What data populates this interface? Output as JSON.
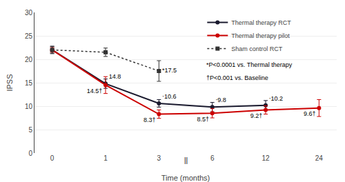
{
  "chart_data": {
    "type": "line",
    "x_label": "Time (months)",
    "y_label": "IPSS",
    "categories": [
      "0",
      "1",
      "3",
      "6",
      "12",
      "24"
    ],
    "ylim": [
      0,
      30
    ],
    "yticks": [
      0,
      5,
      10,
      15,
      20,
      25,
      30
    ],
    "grid": true,
    "legend": "upper right",
    "series": [
      {
        "name": "Thermal therapy RCT",
        "color": "#1a1a2e",
        "marker": "circle",
        "line_style": "solid",
        "values": [
          22.0,
          14.8,
          10.6,
          9.8,
          10.2,
          null
        ],
        "yerr": [
          0.8,
          1.0,
          0.8,
          1.0,
          1.0,
          null
        ],
        "value_labels": [
          null,
          "14.8",
          "‧10.6",
          "‧9.8",
          "‧10.2",
          null
        ]
      },
      {
        "name": "Thermal therapy pilot",
        "color": "#cc0000",
        "marker": "circle",
        "line_style": "solid",
        "values": [
          22.0,
          14.5,
          8.3,
          8.5,
          9.2,
          9.6
        ],
        "yerr": [
          0.5,
          1.8,
          0.9,
          1.0,
          0.9,
          1.8
        ],
        "value_labels": [
          null,
          "14.5†",
          "8.3†",
          "8.5†",
          "9.2†",
          "9.6†"
        ]
      },
      {
        "name": "Sham control RCT",
        "color": "#333333",
        "marker": "square",
        "line_style": "dotted",
        "values": [
          22.0,
          21.5,
          17.5,
          null,
          null,
          null
        ],
        "yerr": [
          0.7,
          0.9,
          2.2,
          null,
          null,
          null
        ],
        "value_labels": [
          null,
          null,
          "*17.5",
          null,
          null,
          null
        ]
      }
    ],
    "annotations": [
      "*P<0.0001 vs. Thermal therapy",
      "†P<0.001 vs. Baseline",
      "||"
    ]
  }
}
